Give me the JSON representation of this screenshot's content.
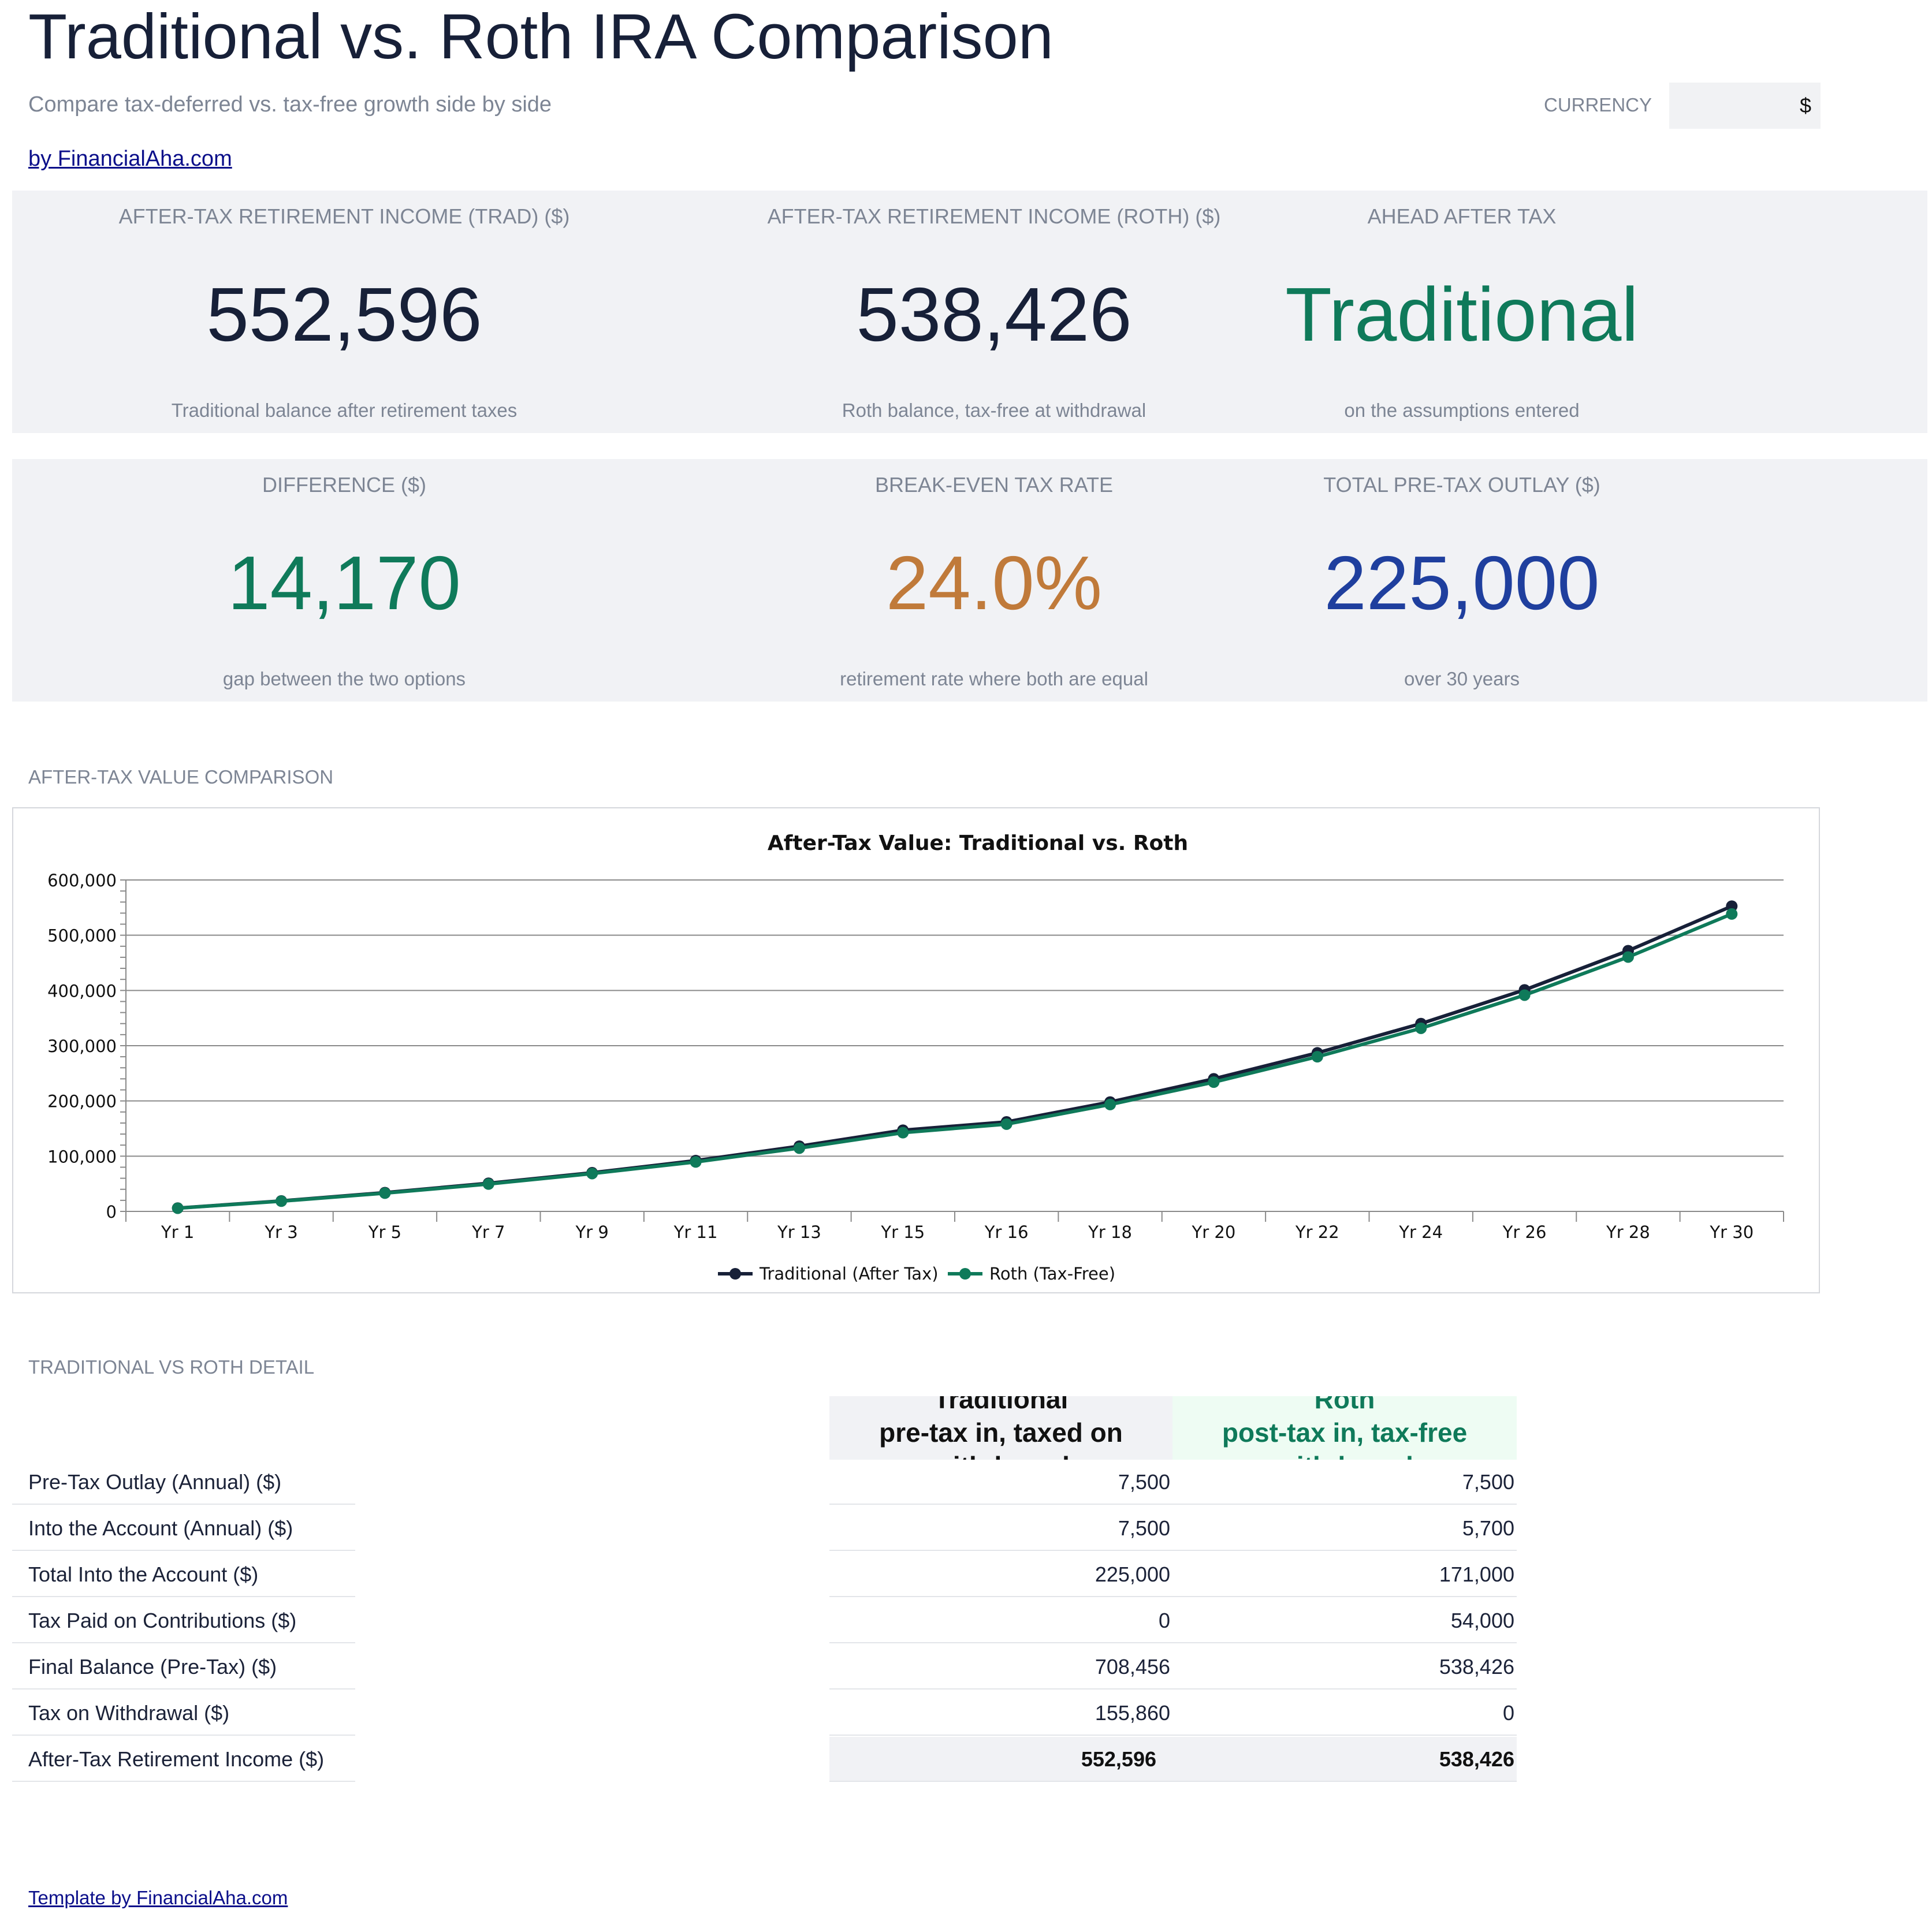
{
  "header": {
    "title": "Traditional vs. Roth IRA Comparison",
    "subtitle": "Compare tax-deferred vs. tax-free growth side by side",
    "byline": "by FinancialAha.com",
    "currency_label": "CURRENCY",
    "currency_value": "$"
  },
  "kpis": [
    {
      "label": "AFTER-TAX RETIREMENT INCOME (TRAD) ($)",
      "value": "552,596",
      "note": "Traditional balance after retirement taxes",
      "color": "#172038"
    },
    {
      "label": "AFTER-TAX RETIREMENT INCOME (ROTH) ($)",
      "value": "538,426",
      "note": "Roth balance, tax-free at withdrawal",
      "color": "#172038"
    },
    {
      "label": "AHEAD AFTER TAX",
      "value": "Traditional",
      "note": "on the assumptions entered",
      "color": "#0f7a5a"
    },
    {
      "label": "DIFFERENCE ($)",
      "value": "14,170",
      "note": "gap between the two options",
      "color": "#0f7a5a"
    },
    {
      "label": "BREAK-EVEN TAX RATE",
      "value": "24.0%",
      "note": "retirement rate where both are equal",
      "color": "#c07a3a"
    },
    {
      "label": "TOTAL PRE-TAX OUTLAY ($)",
      "value": "225,000",
      "note": "over 30 years",
      "color": "#1f3f9e"
    }
  ],
  "chart_section_label": "AFTER-TAX VALUE COMPARISON",
  "chart_data": {
    "type": "line",
    "title": "After-Tax Value: Traditional vs. Roth",
    "categories": [
      "Yr 1",
      "Yr 3",
      "Yr 5",
      "Yr 7",
      "Yr 9",
      "Yr 11",
      "Yr 13",
      "Yr 15",
      "Yr 16",
      "Yr 18",
      "Yr 20",
      "Yr 22",
      "Yr 24",
      "Yr 26",
      "Yr 28",
      "Yr 30"
    ],
    "series": [
      {
        "name": "Traditional (After Tax)",
        "color": "#172038",
        "values": [
          6000,
          19000,
          34000,
          51000,
          70000,
          92000,
          118000,
          147000,
          162000,
          198000,
          240000,
          287000,
          340000,
          401000,
          472000,
          552596
        ]
      },
      {
        "name": "Roth (Tax-Free)",
        "color": "#0f7a5a",
        "values": [
          5800,
          18500,
          33000,
          49500,
          68500,
          89500,
          114500,
          142500,
          158000,
          193500,
          234000,
          280000,
          331500,
          391500,
          460500,
          538426
        ]
      }
    ],
    "ylim": [
      0,
      600000
    ],
    "yticks": [
      "0",
      "100,000",
      "200,000",
      "300,000",
      "400,000",
      "500,000",
      "600,000"
    ],
    "grid": true,
    "legend": "bottom"
  },
  "detail": {
    "section_label": "TRADITIONAL VS ROTH DETAIL",
    "trad_header": "Traditional\npre-tax in, taxed on\nwithdrawal",
    "roth_header": "Roth\npost-tax in, tax-free\nwithdrawal",
    "rows": [
      {
        "label": "Pre-Tax Outlay (Annual) ($)",
        "trad": "7,500",
        "roth": "7,500"
      },
      {
        "label": "Into the Account (Annual) ($)",
        "trad": "7,500",
        "roth": "5,700"
      },
      {
        "label": "Total Into the Account ($)",
        "trad": "225,000",
        "roth": "171,000"
      },
      {
        "label": "Tax Paid on Contributions ($)",
        "trad": "0",
        "roth": "54,000"
      },
      {
        "label": "Final Balance (Pre-Tax) ($)",
        "trad": "708,456",
        "roth": "538,426"
      },
      {
        "label": "Tax on Withdrawal ($)",
        "trad": "155,860",
        "roth": "0"
      },
      {
        "label": "After-Tax Retirement Income ($)",
        "trad": "552,596",
        "roth": "538,426"
      }
    ]
  },
  "footer": "Template by FinancialAha.com"
}
